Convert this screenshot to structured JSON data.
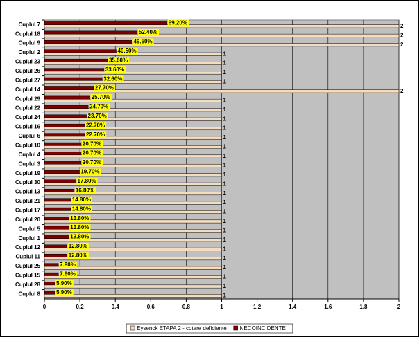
{
  "chart_data": {
    "type": "bar",
    "orientation": "horizontal",
    "grid": true,
    "categories": [
      "Cuplul 7",
      "Cuplul 18",
      "Cuplul 9",
      "Cuplul 2",
      "Cuplul 23",
      "Cuplul 26",
      "Cuplul 27",
      "Cuplul 14",
      "Cuplul 29",
      "Cuplul 22",
      "Cuplul 24",
      "Cuplul 16",
      "Cuplul 6",
      "Cuplul 10",
      "Cuplul 4",
      "Cuplul 3",
      "Cuplul 19",
      "Cuplul 30",
      "Cuplul 13",
      "Cuplul 21",
      "Cuplul 17",
      "Cuplul 20",
      "Cuplul 5",
      "Cuplul 1",
      "Cuplul 12",
      "Cuplul 11",
      "Cuplul 25",
      "Cuplul 15",
      "Cuplul 28",
      "Cuplul 8"
    ],
    "series": [
      {
        "name": "Eysenck ETAPA 2 - cotare deficiente",
        "color": "#f3dcc0",
        "values": [
          2,
          2,
          2,
          1,
          1,
          1,
          1,
          2,
          1,
          1,
          1,
          1,
          1,
          1,
          1,
          1,
          1,
          1,
          1,
          1,
          1,
          1,
          1,
          1,
          1,
          1,
          1,
          1,
          1,
          1
        ]
      },
      {
        "name": "NECOINCIDENTE",
        "color": "#800000",
        "values": [
          0.692,
          0.524,
          0.495,
          0.405,
          0.356,
          0.336,
          0.326,
          0.277,
          0.257,
          0.247,
          0.237,
          0.227,
          0.227,
          0.207,
          0.207,
          0.207,
          0.197,
          0.178,
          0.168,
          0.148,
          0.148,
          0.138,
          0.138,
          0.138,
          0.128,
          0.128,
          0.079,
          0.079,
          0.059,
          0.059
        ],
        "value_labels": [
          "69.20%",
          "52.40%",
          "49.50%",
          "40.50%",
          "35.60%",
          "33.60%",
          "32.60%",
          "27.70%",
          "25.70%",
          "24.70%",
          "23.70%",
          "22.70%",
          "22.70%",
          "20.70%",
          "20.70%",
          "20.70%",
          "19.70%",
          "17.80%",
          "16.80%",
          "14.80%",
          "14.80%",
          "13.80%",
          "13.80%",
          "13.80%",
          "12.80%",
          "12.80%",
          "7.90%",
          "7.90%",
          "5.90%",
          "5.90%"
        ]
      }
    ],
    "xlim": [
      0,
      2
    ],
    "xticks": [
      0,
      0.2,
      0.4,
      0.6,
      0.8,
      1,
      1.2,
      1.4,
      1.6,
      1.8,
      2
    ]
  }
}
